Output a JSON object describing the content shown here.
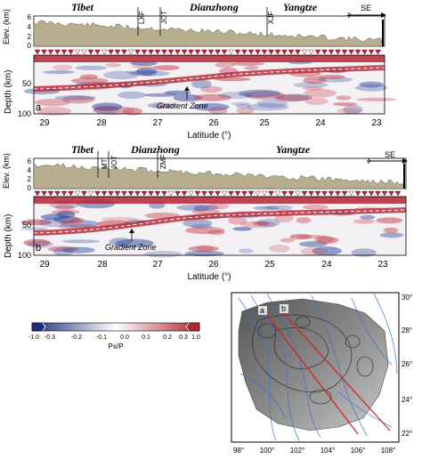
{
  "panels": [
    {
      "letter": "a",
      "regions": [
        "Tibet",
        "Dianzhong",
        "Yangtze"
      ],
      "faults": [
        "LXF",
        "JOT",
        "XJF"
      ],
      "direction": "SE",
      "elev_label": "Elev. (km)",
      "elev_ticks": [
        "6",
        "4",
        "2",
        "0"
      ],
      "depth_label": "Depth (km)",
      "depth_ticks": [
        "50",
        "100"
      ],
      "gradient_label": "Gradient Zone",
      "lat_ticks": [
        "29",
        "28",
        "27",
        "26",
        "25",
        "24",
        "23"
      ],
      "xlabel": "Latitude (°)"
    },
    {
      "letter": "b",
      "regions": [
        "Tibet",
        "Dianzhong",
        "Yangtze"
      ],
      "faults": [
        "MT",
        "JOT",
        "ZMF"
      ],
      "direction": "SE",
      "elev_label": "Elev. (km)",
      "elev_ticks": [
        "6",
        "4",
        "2",
        "0"
      ],
      "depth_label": "Depth (km)",
      "depth_ticks": [
        "50",
        "100"
      ],
      "gradient_label": "Gradient Zone",
      "lat_ticks": [
        "29",
        "28",
        "27",
        "26",
        "25",
        "24",
        "23"
      ],
      "xlabel": "Latitude (°)"
    }
  ],
  "colorbar": {
    "ticks": [
      "-1.0",
      "-0.3",
      "-0.2",
      "-0.1",
      "0.0",
      "0.1",
      "0.2",
      "0.3",
      "1.0"
    ],
    "label": "Ps/P",
    "colors": [
      "#1b2f7a",
      "#ffffff",
      "#b32633"
    ]
  },
  "map": {
    "lon_ticks": [
      "98°",
      "100°",
      "102°",
      "104°",
      "106°",
      "108°"
    ],
    "lat_ticks": [
      "30°",
      "28°",
      "26°",
      "24°",
      "22°"
    ],
    "profile_labels": [
      "a",
      "b"
    ]
  }
}
